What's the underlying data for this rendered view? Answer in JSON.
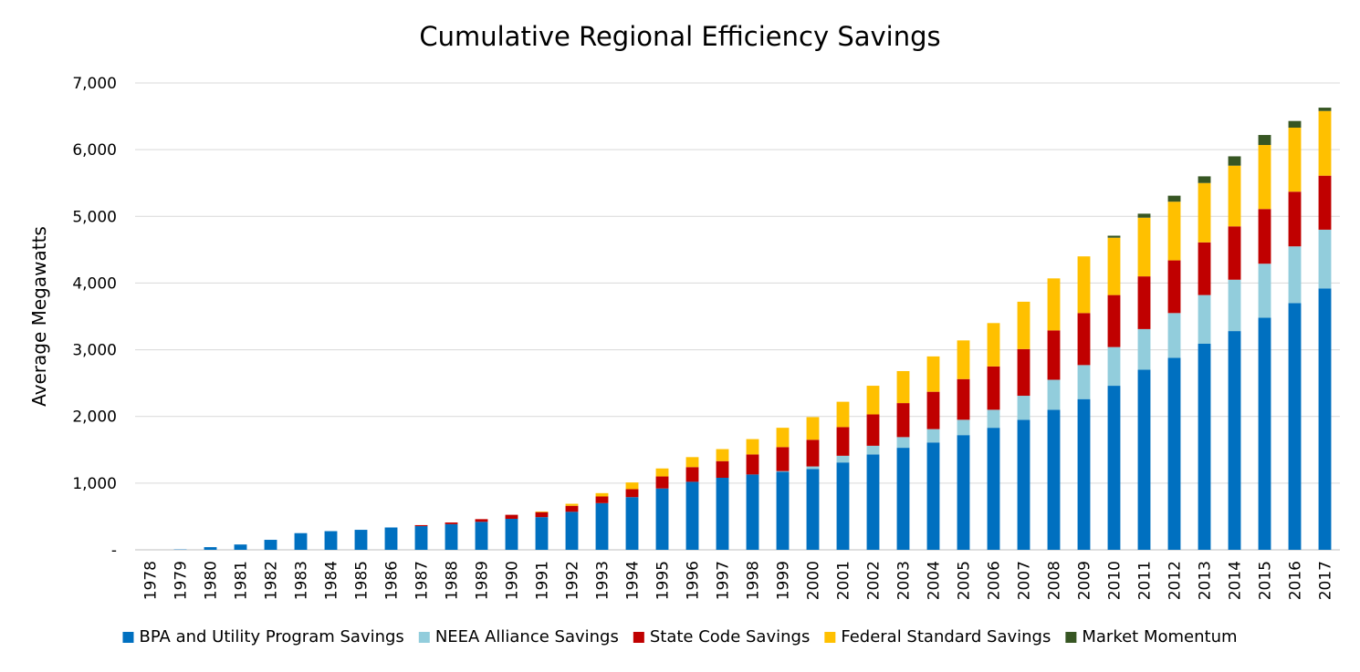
{
  "chart_data": {
    "type": "bar",
    "stacked": true,
    "title": "Cumulative Regional Efficiency Savings",
    "xlabel": "",
    "ylabel": "Average Megawatts",
    "ylim": [
      0,
      7000
    ],
    "yticks": [
      {
        "value": 0,
        "label": "-"
      },
      {
        "value": 1000,
        "label": "1,000"
      },
      {
        "value": 2000,
        "label": "2,000"
      },
      {
        "value": 3000,
        "label": "3,000"
      },
      {
        "value": 4000,
        "label": "4,000"
      },
      {
        "value": 5000,
        "label": "5,000"
      },
      {
        "value": 6000,
        "label": "6,000"
      },
      {
        "value": 7000,
        "label": "7,000"
      }
    ],
    "grid": true,
    "legend_position": "bottom",
    "categories": [
      "1978",
      "1979",
      "1980",
      "1981",
      "1982",
      "1983",
      "1984",
      "1985",
      "1986",
      "1987",
      "1988",
      "1989",
      "1990",
      "1991",
      "1992",
      "1993",
      "1994",
      "1995",
      "1996",
      "1997",
      "1998",
      "1999",
      "2000",
      "2001",
      "2002",
      "2003",
      "2004",
      "2005",
      "2006",
      "2007",
      "2008",
      "2009",
      "2010",
      "2011",
      "2012",
      "2013",
      "2014",
      "2015",
      "2016",
      "2017"
    ],
    "series": [
      {
        "name": "BPA and Utility Program Savings",
        "color": "#0070C0",
        "values": [
          0,
          5,
          40,
          80,
          150,
          250,
          280,
          300,
          335,
          355,
          385,
          420,
          465,
          490,
          570,
          700,
          790,
          920,
          1020,
          1080,
          1130,
          1170,
          1210,
          1310,
          1430,
          1530,
          1610,
          1720,
          1830,
          1950,
          2100,
          2260,
          2460,
          2700,
          2880,
          3090,
          3280,
          3480,
          3700,
          3920
        ]
      },
      {
        "name": "NEEA Alliance Savings",
        "color": "#92CDDC",
        "values": [
          0,
          0,
          0,
          0,
          0,
          0,
          0,
          0,
          0,
          0,
          0,
          0,
          0,
          0,
          0,
          0,
          0,
          0,
          0,
          0,
          0,
          10,
          40,
          100,
          130,
          160,
          200,
          230,
          270,
          360,
          450,
          510,
          580,
          610,
          670,
          730,
          770,
          810,
          850,
          880
        ]
      },
      {
        "name": "State Code Savings",
        "color": "#C00000",
        "values": [
          0,
          0,
          0,
          0,
          0,
          0,
          0,
          0,
          0,
          15,
          25,
          40,
          60,
          75,
          90,
          100,
          120,
          180,
          220,
          250,
          300,
          360,
          400,
          430,
          470,
          510,
          560,
          610,
          650,
          700,
          740,
          780,
          780,
          790,
          790,
          790,
          800,
          820,
          820,
          810
        ]
      },
      {
        "name": "Federal Standard Savings",
        "color": "#FFC000",
        "values": [
          0,
          0,
          0,
          0,
          0,
          0,
          0,
          0,
          0,
          0,
          0,
          0,
          0,
          10,
          30,
          50,
          100,
          120,
          150,
          180,
          230,
          290,
          340,
          380,
          430,
          480,
          530,
          580,
          650,
          710,
          780,
          850,
          860,
          880,
          880,
          890,
          910,
          960,
          960,
          970
        ]
      },
      {
        "name": "Market Momentum",
        "color": "#375623",
        "values": [
          0,
          0,
          0,
          0,
          0,
          0,
          0,
          0,
          0,
          0,
          0,
          0,
          0,
          0,
          0,
          0,
          0,
          0,
          0,
          0,
          0,
          0,
          0,
          0,
          0,
          0,
          0,
          0,
          0,
          0,
          0,
          0,
          30,
          60,
          90,
          100,
          140,
          150,
          100,
          50
        ]
      }
    ]
  }
}
